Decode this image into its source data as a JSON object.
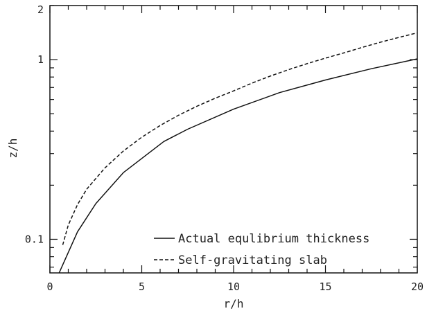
{
  "chart_data": {
    "type": "line",
    "title": "",
    "xlabel": "r/h",
    "ylabel": "z/h",
    "xlim": [
      0,
      20
    ],
    "ylim": [
      0.065,
      2
    ],
    "yscale": "log",
    "grid": false,
    "legend_position": "bottom-right",
    "x_ticks": [
      {
        "value": 0,
        "label": "0"
      },
      {
        "value": 5,
        "label": "5"
      },
      {
        "value": 10,
        "label": "10"
      },
      {
        "value": 15,
        "label": "15"
      },
      {
        "value": 20,
        "label": "20"
      }
    ],
    "y_ticks": [
      {
        "value": 0.1,
        "label": "0.1"
      },
      {
        "value": 1,
        "label": "1"
      },
      {
        "value": 2,
        "label": "2"
      }
    ],
    "series": [
      {
        "name": "Actual equlibrium thickness",
        "style": "solid",
        "color": "#111111",
        "x": [
          0.5,
          1.5,
          2.5,
          4.0,
          6.2,
          7.5,
          10.0,
          12.5,
          15.0,
          17.5,
          20.0
        ],
        "y": [
          0.064,
          0.11,
          0.158,
          0.235,
          0.35,
          0.41,
          0.53,
          0.655,
          0.77,
          0.89,
          1.01
        ]
      },
      {
        "name": "Self-gravitating slab",
        "style": "dashed",
        "color": "#111111",
        "x": [
          0.7,
          1.0,
          1.5,
          2.0,
          3.0,
          4.0,
          5.0,
          6.0,
          7.0,
          8.0,
          9.0,
          10.0,
          11.0,
          12.0,
          13.0,
          14.0,
          15.0,
          16.0,
          17.0,
          18.0,
          19.0,
          20.0
        ],
        "y": [
          0.093,
          0.12,
          0.156,
          0.19,
          0.25,
          0.31,
          0.37,
          0.43,
          0.49,
          0.55,
          0.61,
          0.67,
          0.74,
          0.81,
          0.88,
          0.95,
          1.02,
          1.09,
          1.17,
          1.25,
          1.33,
          1.41
        ]
      }
    ]
  }
}
